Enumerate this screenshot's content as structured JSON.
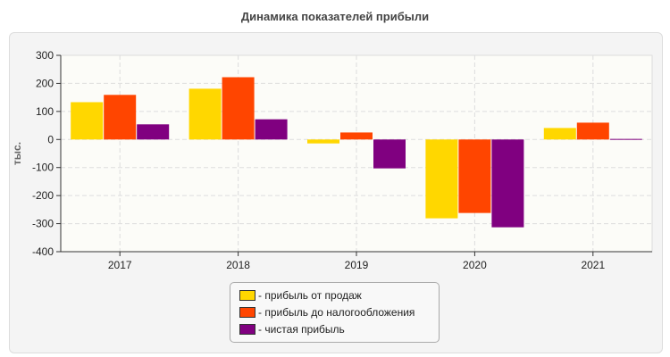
{
  "chart_data": {
    "type": "bar",
    "title": "Динамика показателей прибыли",
    "ylabel": "тыс.",
    "xlabel": "",
    "ylim": [
      -400,
      300
    ],
    "yticks": [
      300,
      200,
      100,
      0,
      -100,
      -200,
      -300,
      -400
    ],
    "grid": true,
    "legend_placement": "bottom",
    "categories": [
      "2017",
      "2018",
      "2019",
      "2020",
      "2021"
    ],
    "series": [
      {
        "name": "- прибыль от продаж",
        "color": "#FFD700",
        "values": [
          133,
          181,
          -14,
          -281,
          41
        ]
      },
      {
        "name": "- прибыль до налогообложения",
        "color": "#FF4500",
        "values": [
          159,
          222,
          25,
          -262,
          60
        ]
      },
      {
        "name": "- чистая прибыль",
        "color": "#800080",
        "values": [
          54,
          72,
          -103,
          -313,
          2
        ]
      }
    ]
  }
}
